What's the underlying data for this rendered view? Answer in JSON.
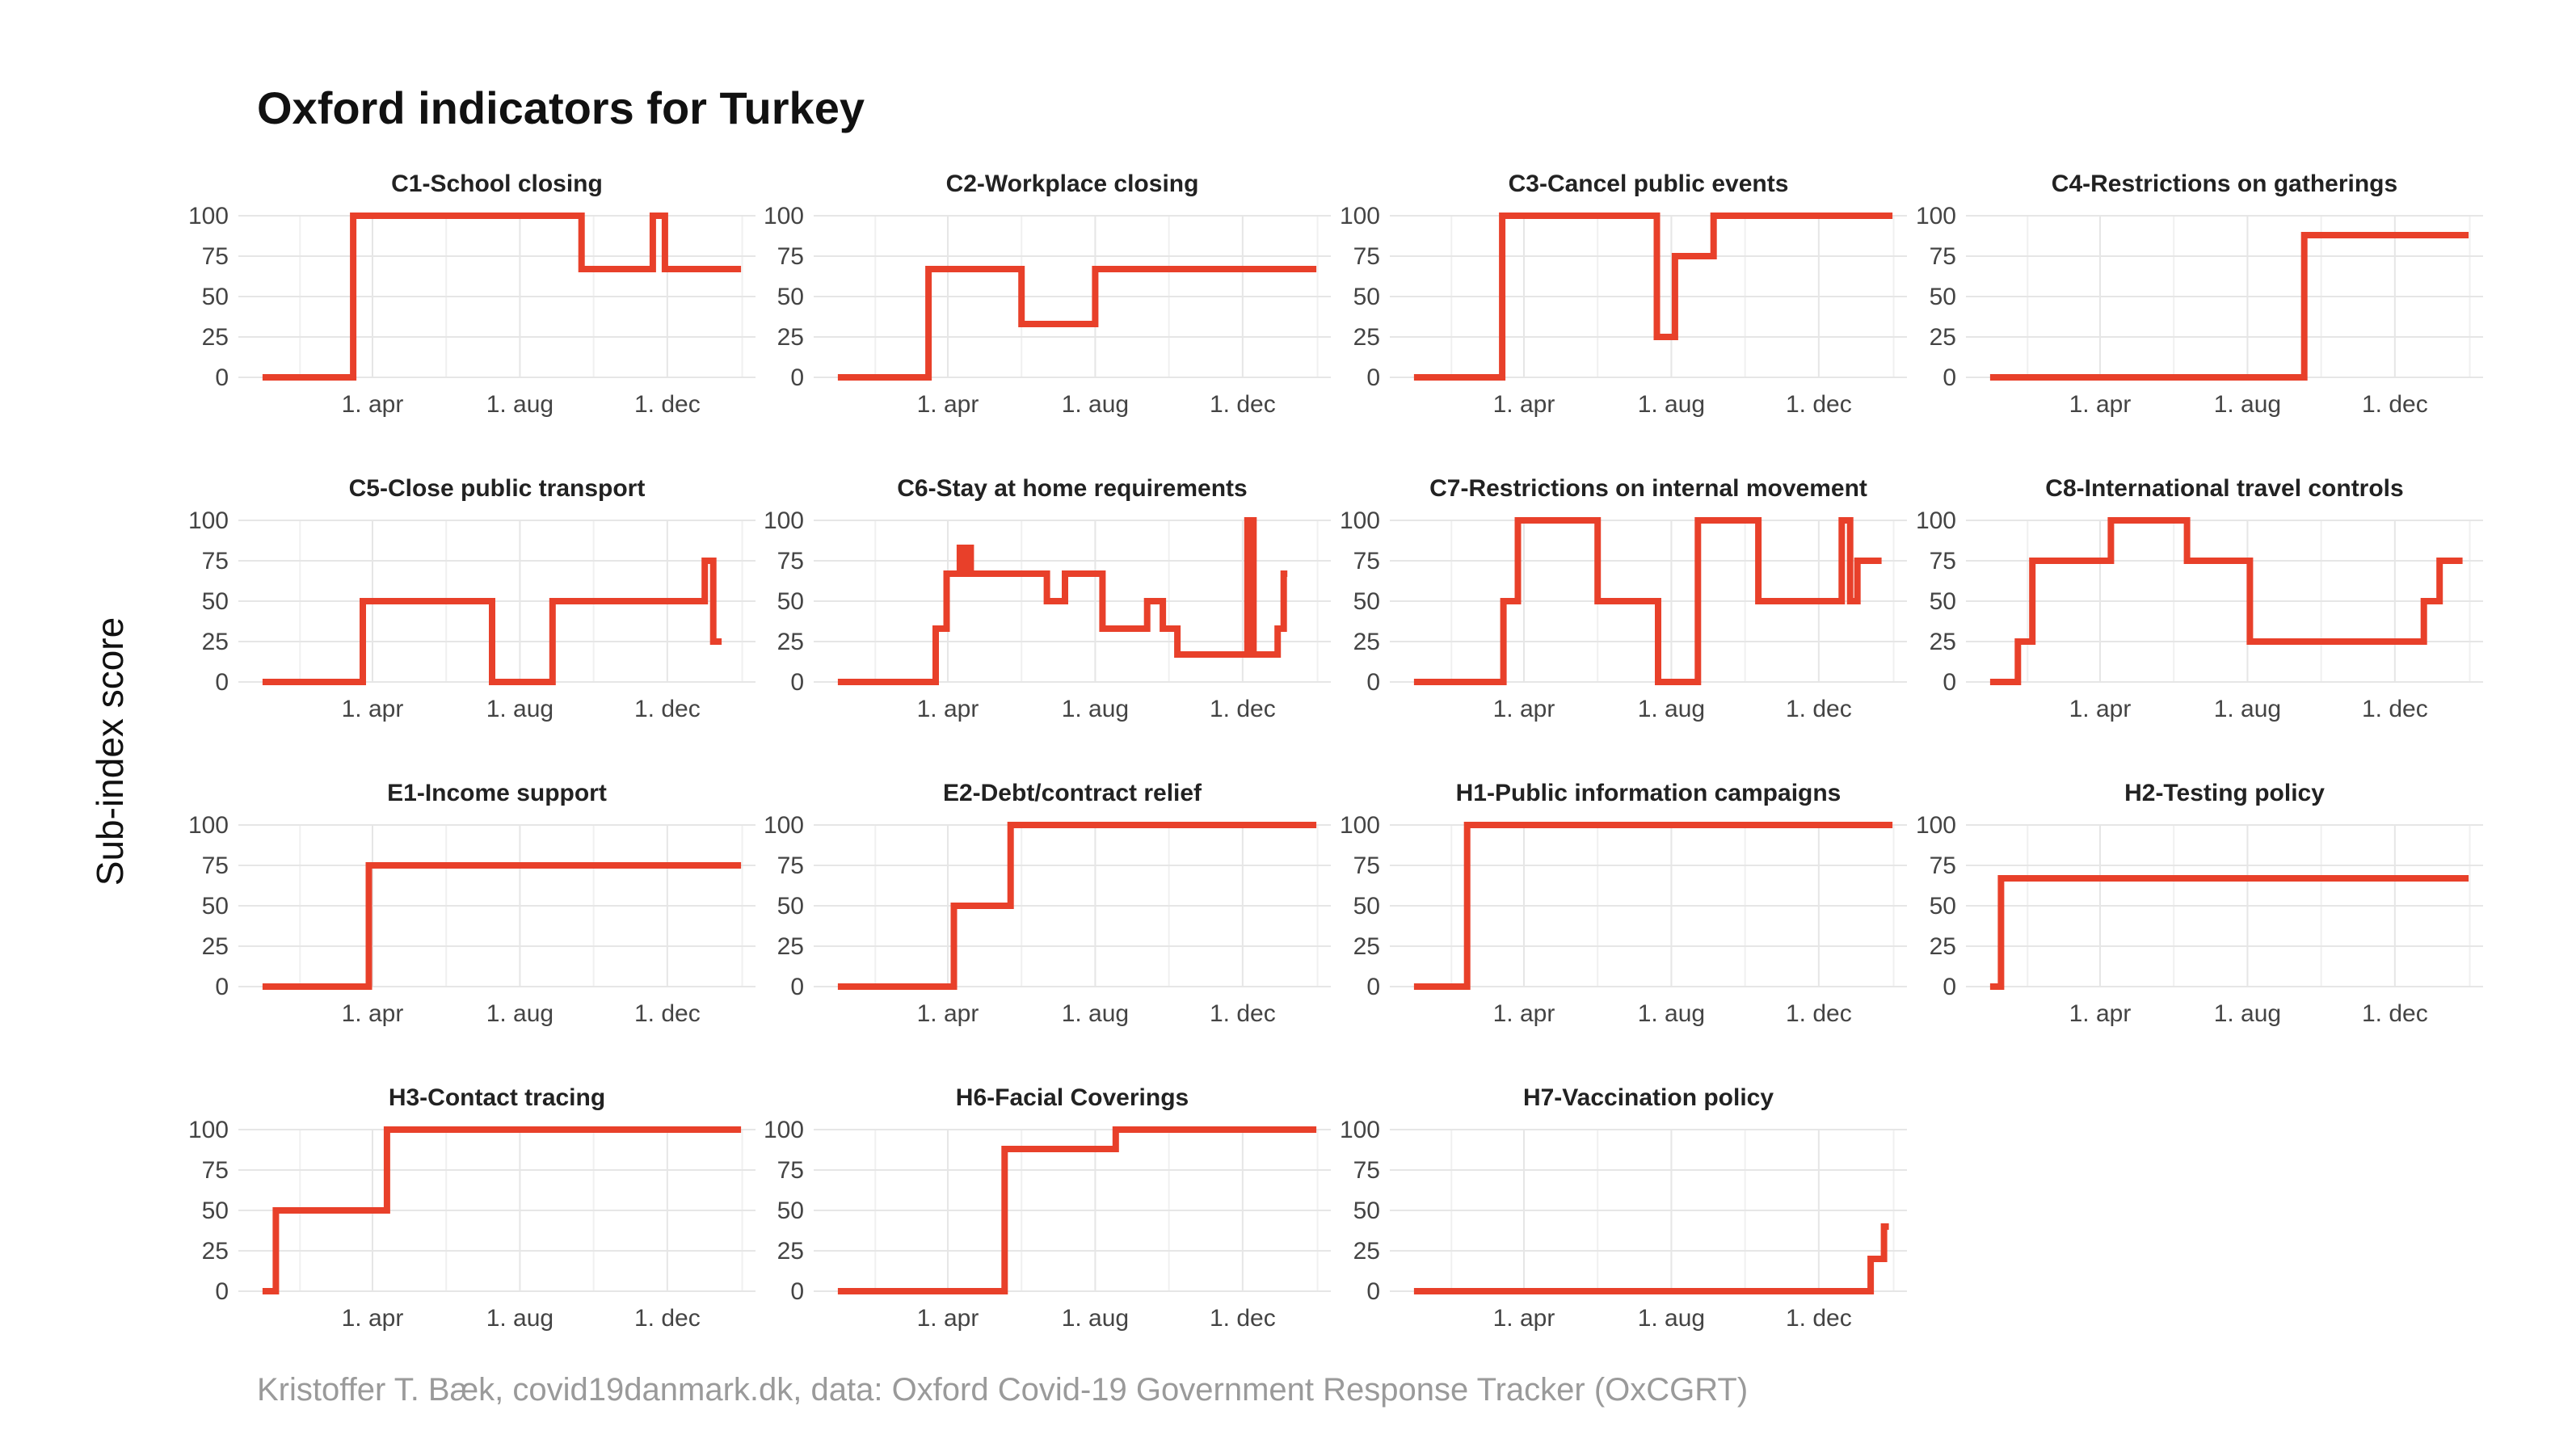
{
  "title": "Oxford indicators for Turkey",
  "ylabel": "Sub-index score",
  "caption": "Kristoffer T. Bæk, covid19danmark.dk, data: Oxford Covid-19 Government Response Tracker (OxCGRT)",
  "colors": {
    "line": "#e8402a",
    "grid": "#e6e6e6",
    "text": "#222222",
    "caption": "#9a9a9a"
  },
  "chart_data": [
    {
      "type": "line",
      "title": "C1-School closing",
      "x_ticks": [
        "1. apr",
        "1. aug",
        "1. dec"
      ],
      "y_ticks": [
        "0",
        "25",
        "50",
        "75",
        "100"
      ],
      "ylim": [
        0,
        100
      ],
      "grid": true,
      "points": [
        [
          "2020-01-01",
          0
        ],
        [
          "2020-03-16",
          0
        ],
        [
          "2020-03-16",
          100
        ],
        [
          "2020-09-21",
          100
        ],
        [
          "2020-09-21",
          67
        ],
        [
          "2020-11-19",
          67
        ],
        [
          "2020-11-19",
          100
        ],
        [
          "2020-11-29",
          100
        ],
        [
          "2020-11-29",
          67
        ],
        [
          "2021-01-31",
          67
        ]
      ]
    },
    {
      "type": "line",
      "title": "C2-Workplace closing",
      "x_ticks": [
        "1. apr",
        "1. aug",
        "1. dec"
      ],
      "y_ticks": [
        "0",
        "25",
        "50",
        "75",
        "100"
      ],
      "ylim": [
        0,
        100
      ],
      "grid": true,
      "points": [
        [
          "2020-01-01",
          0
        ],
        [
          "2020-03-16",
          0
        ],
        [
          "2020-03-16",
          67
        ],
        [
          "2020-06-01",
          67
        ],
        [
          "2020-06-01",
          33
        ],
        [
          "2020-08-01",
          33
        ],
        [
          "2020-08-01",
          67
        ],
        [
          "2021-01-31",
          67
        ]
      ]
    },
    {
      "type": "line",
      "title": "C3-Cancel public events",
      "x_ticks": [
        "1. apr",
        "1. aug",
        "1. dec"
      ],
      "y_ticks": [
        "0",
        "25",
        "50",
        "75",
        "100"
      ],
      "ylim": [
        0,
        100
      ],
      "grid": true,
      "points": [
        [
          "2020-01-01",
          0
        ],
        [
          "2020-03-14",
          0
        ],
        [
          "2020-03-14",
          100
        ],
        [
          "2020-07-20",
          100
        ],
        [
          "2020-07-20",
          25
        ],
        [
          "2020-08-04",
          25
        ],
        [
          "2020-08-04",
          75
        ],
        [
          "2020-09-05",
          75
        ],
        [
          "2020-09-05",
          100
        ],
        [
          "2021-01-31",
          100
        ]
      ]
    },
    {
      "type": "line",
      "title": "C4-Restrictions on gatherings",
      "x_ticks": [
        "1. apr",
        "1. aug",
        "1. dec"
      ],
      "y_ticks": [
        "0",
        "25",
        "50",
        "75",
        "100"
      ],
      "ylim": [
        0,
        100
      ],
      "grid": true,
      "points": [
        [
          "2020-01-01",
          0
        ],
        [
          "2020-09-17",
          0
        ],
        [
          "2020-09-17",
          88
        ],
        [
          "2021-01-31",
          88
        ]
      ]
    },
    {
      "type": "line",
      "title": "C5-Close public transport",
      "x_ticks": [
        "1. apr",
        "1. aug",
        "1. dec"
      ],
      "y_ticks": [
        "0",
        "25",
        "50",
        "75",
        "100"
      ],
      "ylim": [
        0,
        100
      ],
      "grid": true,
      "points": [
        [
          "2020-01-01",
          0
        ],
        [
          "2020-03-24",
          0
        ],
        [
          "2020-03-24",
          50
        ],
        [
          "2020-07-09",
          50
        ],
        [
          "2020-07-09",
          0
        ],
        [
          "2020-08-28",
          0
        ],
        [
          "2020-08-28",
          50
        ],
        [
          "2021-01-01",
          50
        ],
        [
          "2021-01-01",
          75
        ],
        [
          "2021-01-08",
          75
        ],
        [
          "2021-01-08",
          25
        ],
        [
          "2021-01-15",
          25
        ]
      ]
    },
    {
      "type": "line",
      "title": "C6-Stay at home requirements",
      "x_ticks": [
        "1. apr",
        "1. aug",
        "1. dec"
      ],
      "y_ticks": [
        "0",
        "25",
        "50",
        "75",
        "100"
      ],
      "ylim": [
        0,
        100
      ],
      "grid": true,
      "points": [
        [
          "2020-01-01",
          0
        ],
        [
          "2020-03-22",
          0
        ],
        [
          "2020-03-22",
          33
        ],
        [
          "2020-03-31",
          33
        ],
        [
          "2020-03-31",
          67
        ],
        [
          "2020-04-11",
          67
        ],
        [
          "2020-04-11",
          83
        ],
        [
          "2020-04-14",
          83
        ],
        [
          "2020-04-14",
          67
        ],
        [
          "2020-04-18",
          67
        ],
        [
          "2020-04-18",
          83
        ],
        [
          "2020-04-20",
          83
        ],
        [
          "2020-04-20",
          67
        ],
        [
          "2020-06-22",
          67
        ],
        [
          "2020-06-22",
          50
        ],
        [
          "2020-07-07",
          50
        ],
        [
          "2020-07-07",
          67
        ],
        [
          "2020-08-07",
          67
        ],
        [
          "2020-08-07",
          33
        ],
        [
          "2020-09-13",
          33
        ],
        [
          "2020-09-13",
          50
        ],
        [
          "2020-09-26",
          50
        ],
        [
          "2020-09-26",
          33
        ],
        [
          "2020-10-08",
          33
        ],
        [
          "2020-10-08",
          17
        ],
        [
          "2020-12-05",
          17
        ],
        [
          "2020-12-05",
          100
        ],
        [
          "2020-12-10",
          100
        ],
        [
          "2020-12-10",
          17
        ],
        [
          "2020-12-30",
          17
        ],
        [
          "2020-12-30",
          33
        ],
        [
          "2021-01-04",
          33
        ],
        [
          "2021-01-04",
          67
        ],
        [
          "2021-01-07",
          67
        ]
      ]
    },
    {
      "type": "line",
      "title": "C7-Restrictions on internal movement",
      "x_ticks": [
        "1. apr",
        "1. aug",
        "1. dec"
      ],
      "y_ticks": [
        "0",
        "25",
        "50",
        "75",
        "100"
      ],
      "ylim": [
        0,
        100
      ],
      "grid": true,
      "points": [
        [
          "2020-01-01",
          0
        ],
        [
          "2020-03-15",
          0
        ],
        [
          "2020-03-15",
          50
        ],
        [
          "2020-03-27",
          50
        ],
        [
          "2020-03-27",
          100
        ],
        [
          "2020-06-01",
          100
        ],
        [
          "2020-06-01",
          50
        ],
        [
          "2020-07-21",
          50
        ],
        [
          "2020-07-21",
          0
        ],
        [
          "2020-08-23",
          0
        ],
        [
          "2020-08-23",
          100
        ],
        [
          "2020-10-12",
          100
        ],
        [
          "2020-10-12",
          50
        ],
        [
          "2020-12-20",
          50
        ],
        [
          "2020-12-20",
          100
        ],
        [
          "2020-12-27",
          100
        ],
        [
          "2020-12-27",
          50
        ],
        [
          "2021-01-02",
          50
        ],
        [
          "2021-01-02",
          75
        ],
        [
          "2021-01-22",
          75
        ]
      ]
    },
    {
      "type": "line",
      "title": "C8-International travel controls",
      "x_ticks": [
        "1. apr",
        "1. aug",
        "1. dec"
      ],
      "y_ticks": [
        "0",
        "25",
        "50",
        "75",
        "100"
      ],
      "ylim": [
        0,
        100
      ],
      "grid": true,
      "points": [
        [
          "2020-01-01",
          0
        ],
        [
          "2020-01-24",
          0
        ],
        [
          "2020-01-24",
          25
        ],
        [
          "2020-02-05",
          25
        ],
        [
          "2020-02-05",
          75
        ],
        [
          "2020-04-10",
          75
        ],
        [
          "2020-04-10",
          100
        ],
        [
          "2020-06-12",
          100
        ],
        [
          "2020-06-12",
          75
        ],
        [
          "2020-08-03",
          75
        ],
        [
          "2020-08-03",
          25
        ],
        [
          "2020-12-25",
          25
        ],
        [
          "2020-12-25",
          50
        ],
        [
          "2021-01-07",
          50
        ],
        [
          "2021-01-07",
          75
        ],
        [
          "2021-01-26",
          75
        ]
      ]
    },
    {
      "type": "line",
      "title": "E1-Income support",
      "x_ticks": [
        "1. apr",
        "1. aug",
        "1. dec"
      ],
      "y_ticks": [
        "0",
        "25",
        "50",
        "75",
        "100"
      ],
      "ylim": [
        0,
        100
      ],
      "grid": true,
      "points": [
        [
          "2020-01-01",
          0
        ],
        [
          "2020-03-29",
          0
        ],
        [
          "2020-03-29",
          75
        ],
        [
          "2021-01-31",
          75
        ]
      ]
    },
    {
      "type": "line",
      "title": "E2-Debt/contract relief",
      "x_ticks": [
        "1. apr",
        "1. aug",
        "1. dec"
      ],
      "y_ticks": [
        "0",
        "25",
        "50",
        "75",
        "100"
      ],
      "ylim": [
        0,
        100
      ],
      "grid": true,
      "points": [
        [
          "2020-01-01",
          0
        ],
        [
          "2020-04-06",
          0
        ],
        [
          "2020-04-06",
          50
        ],
        [
          "2020-05-23",
          50
        ],
        [
          "2020-05-23",
          100
        ],
        [
          "2021-01-31",
          100
        ]
      ]
    },
    {
      "type": "line",
      "title": "H1-Public information campaigns",
      "x_ticks": [
        "1. apr",
        "1. aug",
        "1. dec"
      ],
      "y_ticks": [
        "0",
        "25",
        "50",
        "75",
        "100"
      ],
      "ylim": [
        0,
        100
      ],
      "grid": true,
      "points": [
        [
          "2020-01-01",
          0
        ],
        [
          "2020-02-14",
          0
        ],
        [
          "2020-02-14",
          100
        ],
        [
          "2021-01-31",
          100
        ]
      ]
    },
    {
      "type": "line",
      "title": "H2-Testing policy",
      "x_ticks": [
        "1. apr",
        "1. aug",
        "1. dec"
      ],
      "y_ticks": [
        "0",
        "25",
        "50",
        "75",
        "100"
      ],
      "ylim": [
        0,
        100
      ],
      "grid": true,
      "points": [
        [
          "2020-01-01",
          0
        ],
        [
          "2020-01-10",
          0
        ],
        [
          "2020-01-10",
          67
        ],
        [
          "2021-01-31",
          67
        ]
      ]
    },
    {
      "type": "line",
      "title": "H3-Contact tracing",
      "x_ticks": [
        "1. apr",
        "1. aug",
        "1. dec"
      ],
      "y_ticks": [
        "0",
        "25",
        "50",
        "75",
        "100"
      ],
      "ylim": [
        0,
        100
      ],
      "grid": true,
      "points": [
        [
          "2020-01-01",
          0
        ],
        [
          "2020-01-12",
          0
        ],
        [
          "2020-01-12",
          50
        ],
        [
          "2020-04-13",
          50
        ],
        [
          "2020-04-13",
          100
        ],
        [
          "2021-01-31",
          100
        ]
      ]
    },
    {
      "type": "line",
      "title": "H6-Facial Coverings",
      "x_ticks": [
        "1. apr",
        "1. aug",
        "1. dec"
      ],
      "y_ticks": [
        "0",
        "25",
        "50",
        "75",
        "100"
      ],
      "ylim": [
        0,
        100
      ],
      "grid": true,
      "points": [
        [
          "2020-01-01",
          0
        ],
        [
          "2020-05-18",
          0
        ],
        [
          "2020-05-18",
          88
        ],
        [
          "2020-08-18",
          88
        ],
        [
          "2020-08-18",
          100
        ],
        [
          "2021-01-31",
          100
        ]
      ]
    },
    {
      "type": "line",
      "title": "H7-Vaccination policy",
      "x_ticks": [
        "1. apr",
        "1. aug",
        "1. dec"
      ],
      "y_ticks": [
        "0",
        "25",
        "50",
        "75",
        "100"
      ],
      "ylim": [
        0,
        100
      ],
      "grid": true,
      "points": [
        [
          "2020-01-01",
          0
        ],
        [
          "2021-01-13",
          0
        ],
        [
          "2021-01-13",
          20
        ],
        [
          "2021-01-24",
          20
        ],
        [
          "2021-01-24",
          40
        ],
        [
          "2021-01-28",
          40
        ]
      ]
    }
  ]
}
